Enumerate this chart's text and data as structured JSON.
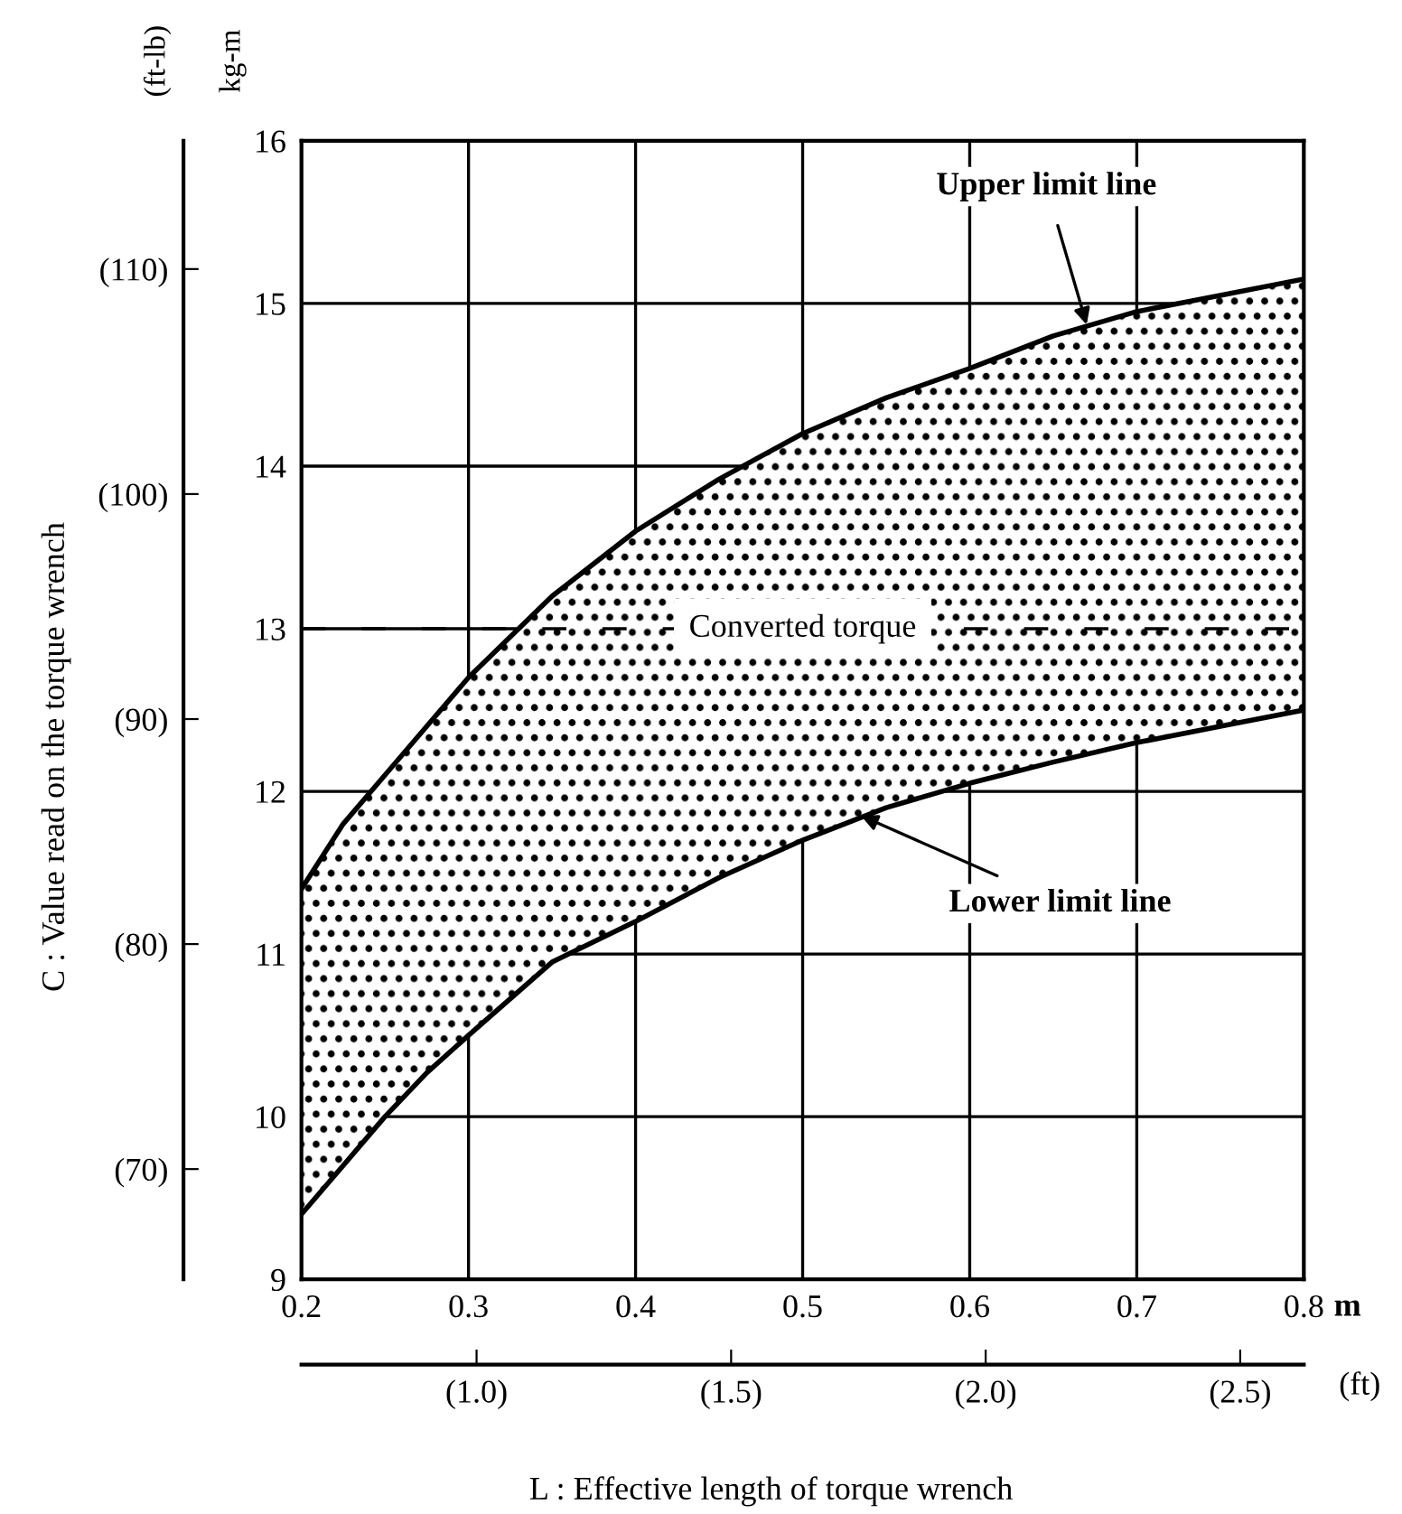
{
  "chart_data": {
    "type": "line",
    "x": [
      0.2,
      0.225,
      0.25,
      0.275,
      0.3,
      0.35,
      0.4,
      0.45,
      0.5,
      0.55,
      0.6,
      0.65,
      0.7,
      0.75,
      0.8
    ],
    "series": [
      {
        "color": "#000000",
        "values": [
          11.4,
          11.8,
          12.1,
          12.4,
          12.7,
          13.2,
          13.6,
          13.92,
          14.2,
          14.42,
          14.6,
          14.8,
          14.95,
          15.05,
          15.15
        ],
        "lower": [
          9.4,
          9.7,
          10.0,
          10.27,
          10.5,
          10.95,
          11.2,
          11.47,
          11.7,
          11.9,
          12.05,
          12.18,
          12.3,
          12.4,
          12.5
        ],
        "upper": [
          11.4,
          11.8,
          12.1,
          12.4,
          12.7,
          13.2,
          13.6,
          13.92,
          14.2,
          14.42,
          14.6,
          14.8,
          14.95,
          15.05,
          15.15
        ]
      },
      {
        "color": "#000000",
        "values": [
          9.4,
          9.7,
          10.0,
          10.27,
          10.5,
          10.95,
          11.2,
          11.47,
          11.7,
          11.9,
          12.05,
          12.18,
          12.3,
          12.4,
          12.5
        ]
      }
    ],
    "xlim": [
      0.2,
      0.8
    ],
    "xticks": [
      0.2,
      0.3,
      0.4,
      0.5,
      0.6,
      0.7,
      0.8
    ],
    "ylim": [
      9,
      16
    ],
    "yticks": [
      9,
      10,
      11,
      12,
      13,
      14,
      15,
      16
    ],
    "y2lim": [
      65.1,
      115.7
    ],
    "y2ticks": [
      {
        "value": 70,
        "label": "(70)"
      },
      {
        "value": 80,
        "label": "(80)"
      },
      {
        "value": 90,
        "label": "(90)"
      },
      {
        "value": 100,
        "label": "(100)"
      },
      {
        "value": 110,
        "label": "(110)"
      }
    ],
    "x2lim": [
      0.656,
      2.625
    ],
    "x2ticks": [
      {
        "value": 1.0,
        "label": "(1.0)"
      },
      {
        "value": 1.5,
        "label": "(1.5)"
      },
      {
        "value": 2.0,
        "label": "(2.0)"
      },
      {
        "value": 2.5,
        "label": "(2.5)"
      }
    ],
    "xlabel": "m",
    "x2label": "(ft)",
    "ylabel": "kg-m",
    "y2label": "(ft-lb)",
    "ref_lines": [
      {
        "axis": "y",
        "value": 13,
        "label": "Converted torque",
        "line_style": "dashed",
        "color": "#000000"
      }
    ],
    "annotations": [
      {
        "text": "Upper limit line",
        "x": 0.67,
        "y": 14.87
      },
      {
        "text": "Lower limit line",
        "x": 0.535,
        "y": 11.85
      },
      "C : Value read on the torque wrench",
      "L : Effective length of torque wrench"
    ],
    "grid": true,
    "marker": "none",
    "line_style": "solid"
  }
}
